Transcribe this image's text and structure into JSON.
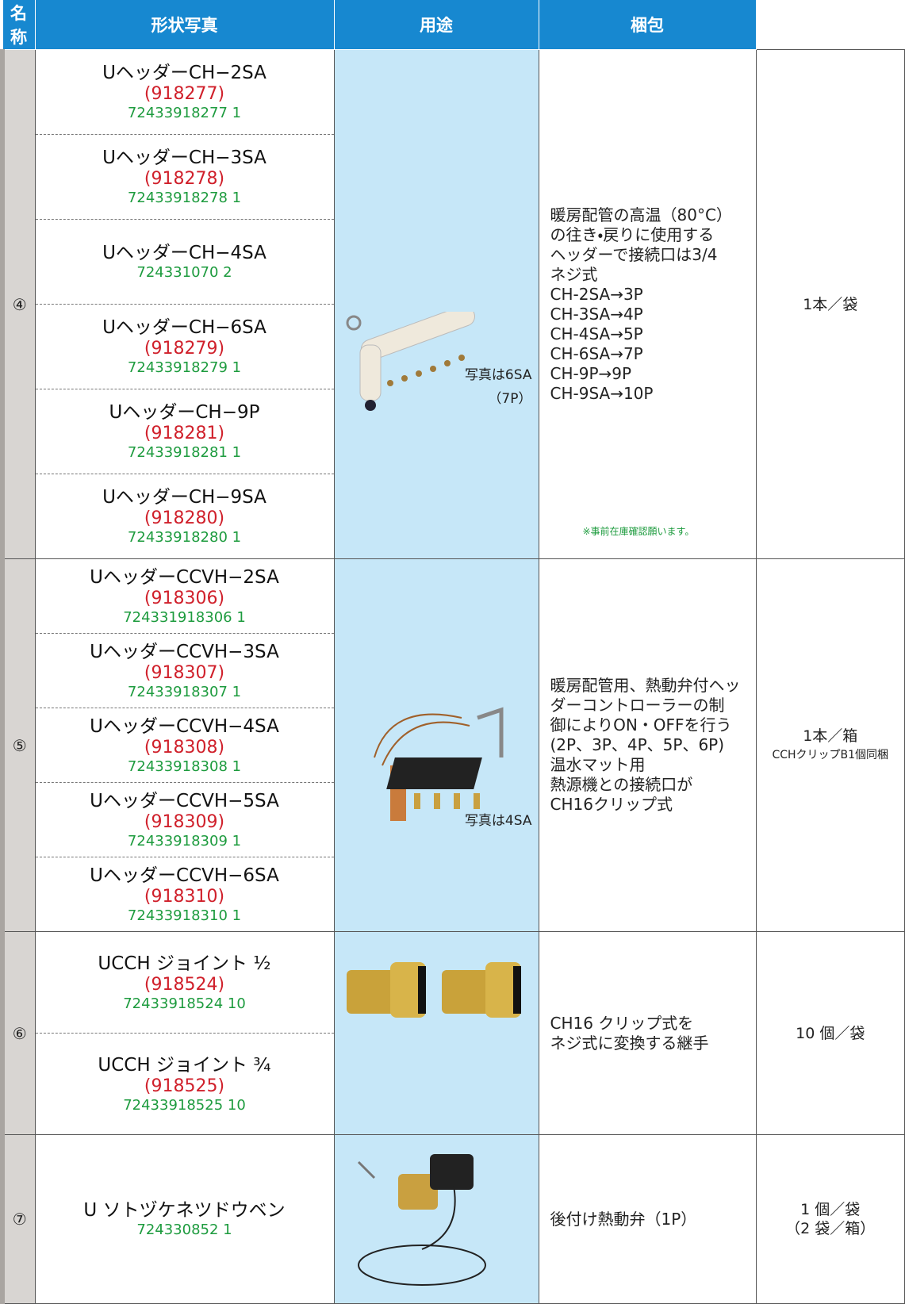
{
  "table": {
    "headers": [
      "名称",
      "形状写真",
      "用途",
      "梱包"
    ],
    "groups": [
      {
        "number": "④",
        "items": [
          {
            "name": "UヘッダーCH−2SA",
            "code": "(918277)",
            "jan": "72433918277 1"
          },
          {
            "name": "UヘッダーCH−3SA",
            "code": "(918278)",
            "jan": "72433918278 1"
          },
          {
            "name": "UヘッダーCH−4SA",
            "jan": "724331070 2"
          },
          {
            "name": "UヘッダーCH−6SA",
            "code": "(918279)",
            "jan": "72433918279 1"
          },
          {
            "name": "UヘッダーCH−9P",
            "code": "(918281)",
            "jan": "72433918281 1"
          },
          {
            "name": "UヘッダーCH−9SA",
            "code": "(918280)",
            "jan": "72433918280 1"
          }
        ],
        "photo_caption": [
          "写真は6SA",
          "（7P）"
        ],
        "usage": [
          "暖房配管の高温（80°C）",
          "の往き・戻りに使用する",
          "ヘッダーで接続口は3/4",
          "ネジ式",
          "CH-2SA→3P",
          "CH-3SA→4P",
          "CH-4SA→5P",
          "CH-6SA→7P",
          "CH-9P→9P",
          "CH-9SA→10P"
        ],
        "note": "※事前在庫確認願います。",
        "packing": [
          "1本／袋"
        ]
      },
      {
        "number": "⑤",
        "items": [
          {
            "name": "UヘッダーCCVH−2SA",
            "code": "(918306)",
            "jan": "724331918306 1"
          },
          {
            "name": "UヘッダーCCVH−3SA",
            "code": "(918307)",
            "jan": "72433918307 1"
          },
          {
            "name": "UヘッダーCCVH−4SA",
            "code": "(918308)",
            "jan": "72433918308 1"
          },
          {
            "name": "UヘッダーCCVH−5SA",
            "code": "(918309)",
            "jan": "72433918309 1"
          },
          {
            "name": "UヘッダーCCVH−6SA",
            "code": "(918310)",
            "jan": "72433918310 1"
          }
        ],
        "photo_caption": [
          "写真は4SA"
        ],
        "usage": [
          "暖房配管用、熱動弁付ヘッ",
          "ダーコントローラーの制",
          "御によりON・OFFを行う",
          "(2P、3P、4P、5P、6P)",
          "温水マット用",
          "熱源機との接続口が",
          "CH16クリップ式"
        ],
        "packing": [
          "1本／箱",
          "CCHクリップB1個同梱"
        ]
      },
      {
        "number": "⑥",
        "items": [
          {
            "name": "UCCH ジョイント ½",
            "code": "(918524)",
            "jan": "72433918524 10"
          },
          {
            "name": "UCCH ジョイント ¾",
            "code": "(918525)",
            "jan": "72433918525 10"
          }
        ],
        "usage": [
          "CH16 クリップ式を",
          "ネジ式に変換する継手"
        ],
        "packing": [
          "10 個／袋"
        ]
      },
      {
        "number": "⑦",
        "items": [
          {
            "name": "U ソトヅケネツドウベン",
            "jan": "724330852 1"
          }
        ],
        "usage": [
          "後付け熱動弁（1P）"
        ],
        "packing": [
          "1 個／袋",
          "（2 袋／箱）"
        ]
      }
    ]
  }
}
